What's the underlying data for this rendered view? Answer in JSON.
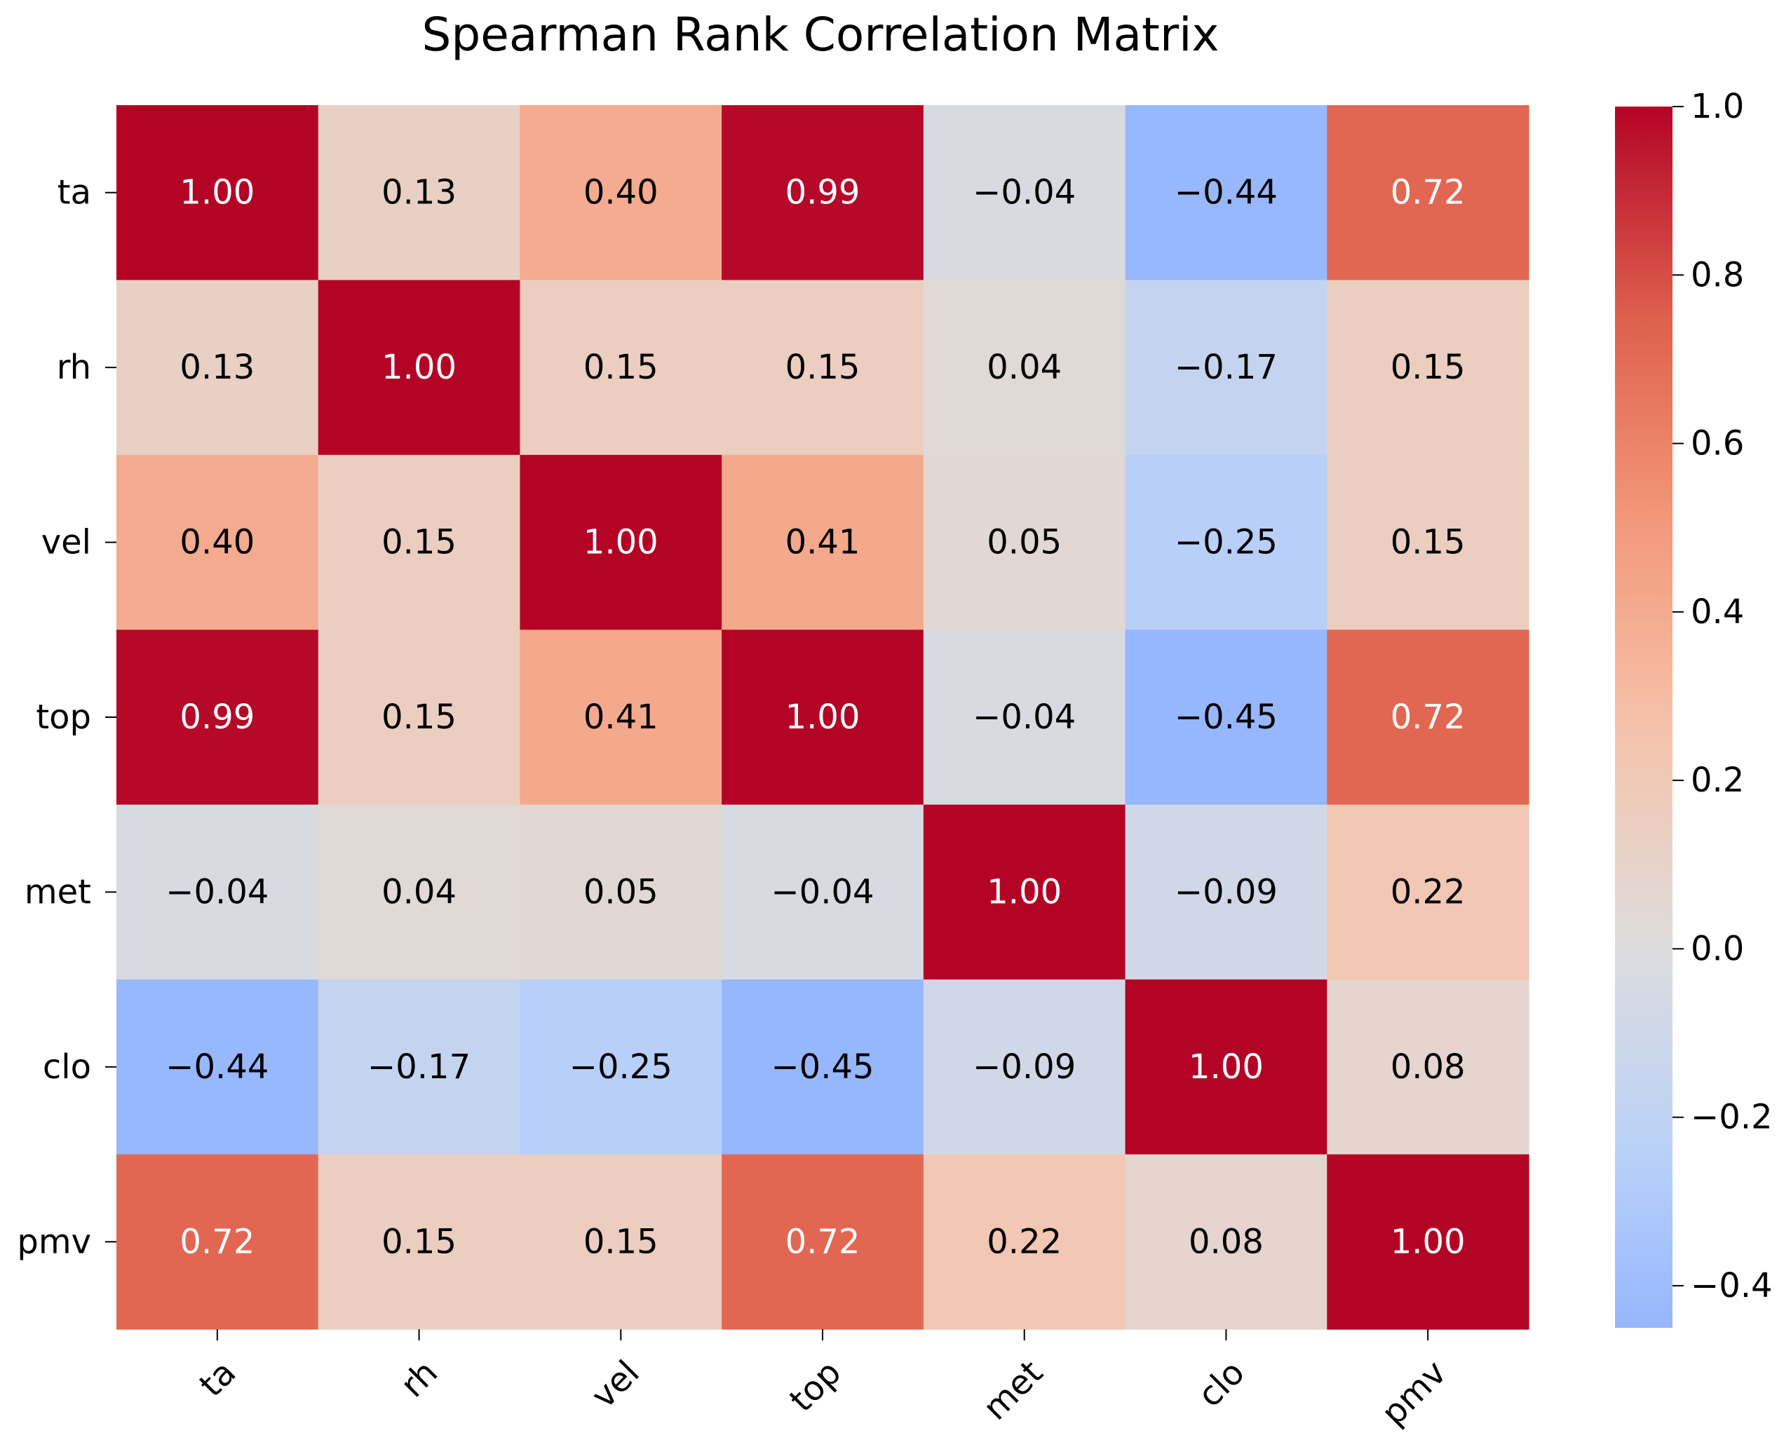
{
  "chart_data": {
    "type": "heatmap",
    "title": "Spearman Rank Correlation Matrix",
    "xlabel": "",
    "ylabel": "",
    "row_labels": [
      "ta",
      "rh",
      "vel",
      "top",
      "met",
      "clo",
      "pmv"
    ],
    "col_labels": [
      "ta",
      "rh",
      "vel",
      "top",
      "met",
      "clo",
      "pmv"
    ],
    "values": [
      [
        1.0,
        0.13,
        0.4,
        0.99,
        -0.04,
        -0.44,
        0.72
      ],
      [
        0.13,
        1.0,
        0.15,
        0.15,
        0.04,
        -0.17,
        0.15
      ],
      [
        0.4,
        0.15,
        1.0,
        0.41,
        0.05,
        -0.25,
        0.15
      ],
      [
        0.99,
        0.15,
        0.41,
        1.0,
        -0.04,
        -0.45,
        0.72
      ],
      [
        -0.04,
        0.04,
        0.05,
        -0.04,
        1.0,
        -0.09,
        0.22
      ],
      [
        -0.44,
        -0.17,
        -0.25,
        -0.45,
        -0.09,
        1.0,
        0.08
      ],
      [
        0.72,
        0.15,
        0.15,
        0.72,
        0.22,
        0.08,
        1.0
      ]
    ],
    "cell_labels": [
      [
        "1.00",
        "0.13",
        "0.40",
        "0.99",
        "−0.04",
        "−0.44",
        "0.72"
      ],
      [
        "0.13",
        "1.00",
        "0.15",
        "0.15",
        "0.04",
        "−0.17",
        "0.15"
      ],
      [
        "0.40",
        "0.15",
        "1.00",
        "0.41",
        "0.05",
        "−0.25",
        "0.15"
      ],
      [
        "0.99",
        "0.15",
        "0.41",
        "1.00",
        "−0.04",
        "−0.45",
        "0.72"
      ],
      [
        "−0.04",
        "0.04",
        "0.05",
        "−0.04",
        "1.00",
        "−0.09",
        "0.22"
      ],
      [
        "−0.44",
        "−0.17",
        "−0.25",
        "−0.45",
        "−0.09",
        "1.00",
        "0.08"
      ],
      [
        "0.72",
        "0.15",
        "0.15",
        "0.72",
        "0.22",
        "0.08",
        "1.00"
      ]
    ],
    "colormap": "coolwarm",
    "center": 0.0,
    "vmin": -0.45,
    "vmax": 1.0,
    "colorbar": {
      "range": [
        -0.45,
        1.0
      ],
      "ticks": [
        1.0,
        0.8,
        0.6,
        0.4,
        0.2,
        0.0,
        -0.2,
        -0.4
      ],
      "tick_labels": [
        "1.0",
        "0.8",
        "0.6",
        "0.4",
        "0.2",
        "0.0",
        "−0.2",
        "−0.4"
      ]
    },
    "grid": false,
    "legend": "colorbar-right"
  },
  "colors": {
    "background": "#ffffff",
    "text_dark": "#000000",
    "text_light": "#ffffff",
    "cold_end": "#3b4cc0",
    "neutral": "#dddddd",
    "hot_end": "#b40426"
  }
}
